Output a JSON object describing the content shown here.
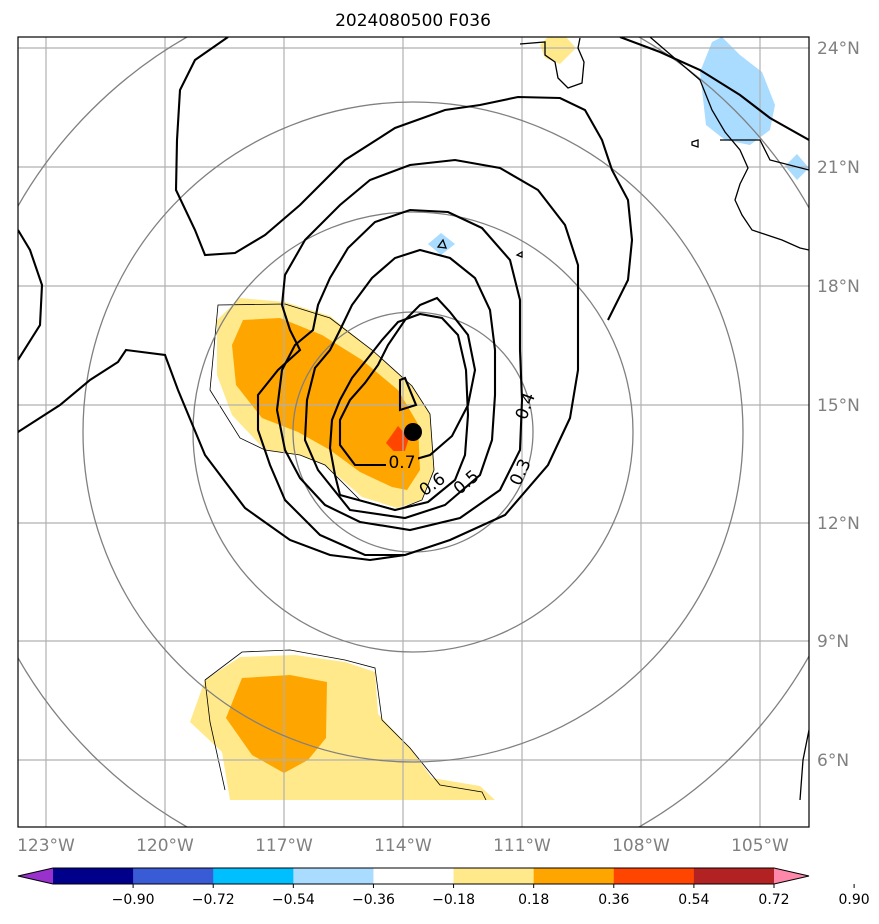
{
  "chart_data": {
    "type": "contour-map",
    "title": "2024080500 F036",
    "projection": "lat-lon map",
    "lon_range": [
      -124.0,
      -103.0
    ],
    "lat_range": [
      4.3,
      24.3
    ],
    "lon_ticks": [
      {
        "value": -123,
        "label": "123°W"
      },
      {
        "value": -120,
        "label": "120°W"
      },
      {
        "value": -117,
        "label": "117°W"
      },
      {
        "value": -114,
        "label": "114°W"
      },
      {
        "value": -111,
        "label": "111°W"
      },
      {
        "value": -108,
        "label": "108°W"
      },
      {
        "value": -105,
        "label": "105°W"
      }
    ],
    "lat_ticks": [
      {
        "value": 24,
        "label": "24°N"
      },
      {
        "value": 21,
        "label": "21°N"
      },
      {
        "value": 18,
        "label": "18°N"
      },
      {
        "value": 15,
        "label": "15°N"
      },
      {
        "value": 12,
        "label": "12°N"
      },
      {
        "value": 9,
        "label": "9°N"
      },
      {
        "value": 6,
        "label": "6°N"
      }
    ],
    "grid": true,
    "storm_center": {
      "lon": -113.8,
      "lat": 14.3
    },
    "contour_levels": [
      0.3,
      0.4,
      0.5,
      0.6,
      0.7
    ],
    "contour_labels": [
      {
        "text": "0.7",
        "lon": -114.0,
        "lat": 13.9
      },
      {
        "text": "0.6",
        "lon": -113.3,
        "lat": 13.3
      },
      {
        "text": "0.5",
        "lon": -112.5,
        "lat": 13.4
      },
      {
        "text": "0.4",
        "lon": -111.0,
        "lat": 15.0
      },
      {
        "text": "0.3",
        "lon": -110.9,
        "lat": 13.5
      }
    ],
    "range_rings": {
      "center_lon": -113.8,
      "center_lat": 14.3,
      "radii_deg": [
        3.0,
        5.6,
        8.5,
        11.5
      ]
    },
    "colorbar": {
      "ticks": [
        "−0.90",
        "−0.72",
        "−0.54",
        "−0.36",
        "−0.18",
        "0.18",
        "0.36",
        "0.54",
        "0.72",
        "0.90"
      ],
      "colors": [
        "#9932cc",
        "#00008b",
        "#3a5bd6",
        "#00bfff",
        "#aadcff",
        "#ffffff",
        "#ffe98a",
        "#ffa500",
        "#ff4500",
        "#b22222",
        "#ff88aa"
      ],
      "extend": "both"
    }
  }
}
